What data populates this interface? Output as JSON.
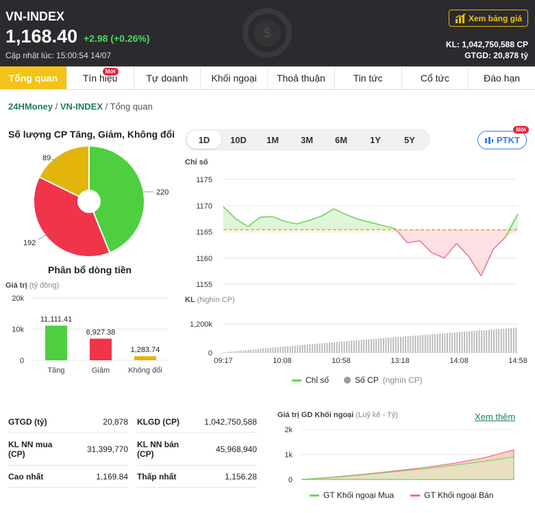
{
  "header": {
    "title": "VN-INDEX",
    "price": "1,168.40",
    "change": "+2.98 (+0.26%)",
    "updated": "Cập nhật lúc: 15:00:54 14/07",
    "price_board_label": "Xem bảng giá",
    "kl": "KL: 1,042,750,588 CP",
    "gtgd": "GTGD: 20,878 tỷ"
  },
  "tabs": [
    {
      "label": "Tổng quan",
      "active": true
    },
    {
      "label": "Tín hiệu",
      "badge": "Mới"
    },
    {
      "label": "Tự doanh"
    },
    {
      "label": "Khối ngoại"
    },
    {
      "label": "Thoả thuận"
    },
    {
      "label": "Tin tức"
    },
    {
      "label": "Cổ tức"
    },
    {
      "label": "Đáo hạn"
    }
  ],
  "breadcrumb": {
    "item1": "24HMoney",
    "item2": "VN-INDEX",
    "current": "Tổng quan"
  },
  "breadth": {
    "title": "Số lượng CP Tăng, Giảm, Không đổi",
    "labels": [
      "89",
      "220",
      "192"
    ]
  },
  "money_flow": {
    "title": "Phân bổ dòng tiền",
    "axis_label": "Giá trị",
    "axis_unit": "(tỷ đồng)",
    "yticks": [
      "20k",
      "10k",
      "0"
    ]
  },
  "period_tabs": [
    "1D",
    "10D",
    "1M",
    "3M",
    "6M",
    "1Y",
    "5Y"
  ],
  "ptkt": {
    "label": "PTKT",
    "badge": "Mới"
  },
  "main_chart": {
    "index_label": "Chỉ số",
    "yticks": [
      "1175",
      "1170",
      "1165",
      "1160",
      "1155"
    ],
    "volume_label": "KL",
    "volume_unit": "(Nghìn CP)",
    "volume_ticks": [
      "1,200k",
      "0"
    ],
    "xticks": [
      "09:17",
      "10:08",
      "10:58",
      "13:18",
      "14:08",
      "14:58"
    ],
    "legend": [
      {
        "name": "Chỉ số",
        "unit": ""
      },
      {
        "name": "Số CP",
        "unit": "(nghìn CP)"
      }
    ]
  },
  "stats": {
    "gtgd_label": "GTGD (tỷ)",
    "gtgd_value": "20,878",
    "klgd_label": "KLGD (CP)",
    "klgd_value": "1,042,750,588",
    "nn_buy_label": "KL NN mua (CP)",
    "nn_buy_value": "31,399,770",
    "nn_sell_label": "KL NN bán (CP)",
    "nn_sell_value": "45,968,940",
    "high_label": "Cao nhất",
    "high_value": "1,169.84",
    "low_label": "Thấp nhất",
    "low_value": "1,156.28"
  },
  "foreign": {
    "title": "Giá trị GD Khối ngoại",
    "unit": "(Luỹ kế - Tỷ)",
    "more": "Xem thêm",
    "yticks": [
      "2k",
      "1k",
      "0"
    ],
    "legend_buy": "GT Khối ngoại Mua",
    "legend_sell": "GT Khối ngoại Bán"
  },
  "colors": {
    "up": "#4fcf3f",
    "down": "#f0344a",
    "neutral": "#e3b50c",
    "accent": "#f3c317",
    "link": "#1a7f5a"
  },
  "chart_data": [
    {
      "type": "pie",
      "categories": [
        "Tăng",
        "Giảm",
        "Không đổi"
      ],
      "values": [
        220,
        192,
        89
      ],
      "title": "Số lượng CP Tăng, Giảm, Không đổi"
    },
    {
      "type": "bar",
      "title": "Phân bổ dòng tiền",
      "categories": [
        "Tăng",
        "Giảm",
        "Không đổi"
      ],
      "values": [
        11111.41,
        6927.38,
        1283.74
      ],
      "value_labels": [
        "11,111.41",
        "6,927.38",
        "1,283.74"
      ],
      "ylabel": "Giá trị (tỷ đồng)",
      "ylim": [
        0,
        20000
      ]
    },
    {
      "type": "area",
      "title": "Chỉ số",
      "reference": 1165.4,
      "ylim": [
        1155,
        1175
      ],
      "x": [
        "09:17",
        "09:30",
        "09:45",
        "10:00",
        "10:08",
        "10:20",
        "10:35",
        "10:50",
        "10:58",
        "11:10",
        "11:20",
        "11:30",
        "13:00",
        "13:10",
        "13:18",
        "13:30",
        "13:40",
        "13:50",
        "14:00",
        "14:08",
        "14:15",
        "14:25",
        "14:35",
        "14:45",
        "14:58"
      ],
      "y": [
        1169.8,
        1167.5,
        1166.0,
        1167.8,
        1167.9,
        1167.0,
        1166.5,
        1167.2,
        1168.0,
        1169.4,
        1168.3,
        1167.4,
        1166.8,
        1166.2,
        1165.6,
        1162.9,
        1163.3,
        1161.0,
        1160.0,
        1162.8,
        1160.3,
        1156.6,
        1161.7,
        1164.0,
        1168.4
      ]
    },
    {
      "type": "bar",
      "title": "KL",
      "ylabel": "Nghìn CP",
      "ylim": [
        0,
        1200000
      ],
      "cumulative_end": 1042750
    },
    {
      "type": "area",
      "title": "Giá trị GD Khối ngoại",
      "ylim": [
        0,
        2000
      ],
      "series": [
        {
          "name": "GT Khối ngoại Mua",
          "values": [
            0,
            80,
            180,
            300,
            420,
            560,
            720,
            900
          ]
        },
        {
          "name": "GT Khối ngoại Bán",
          "values": [
            0,
            90,
            200,
            330,
            470,
            640,
            860,
            1180
          ]
        }
      ]
    }
  ]
}
